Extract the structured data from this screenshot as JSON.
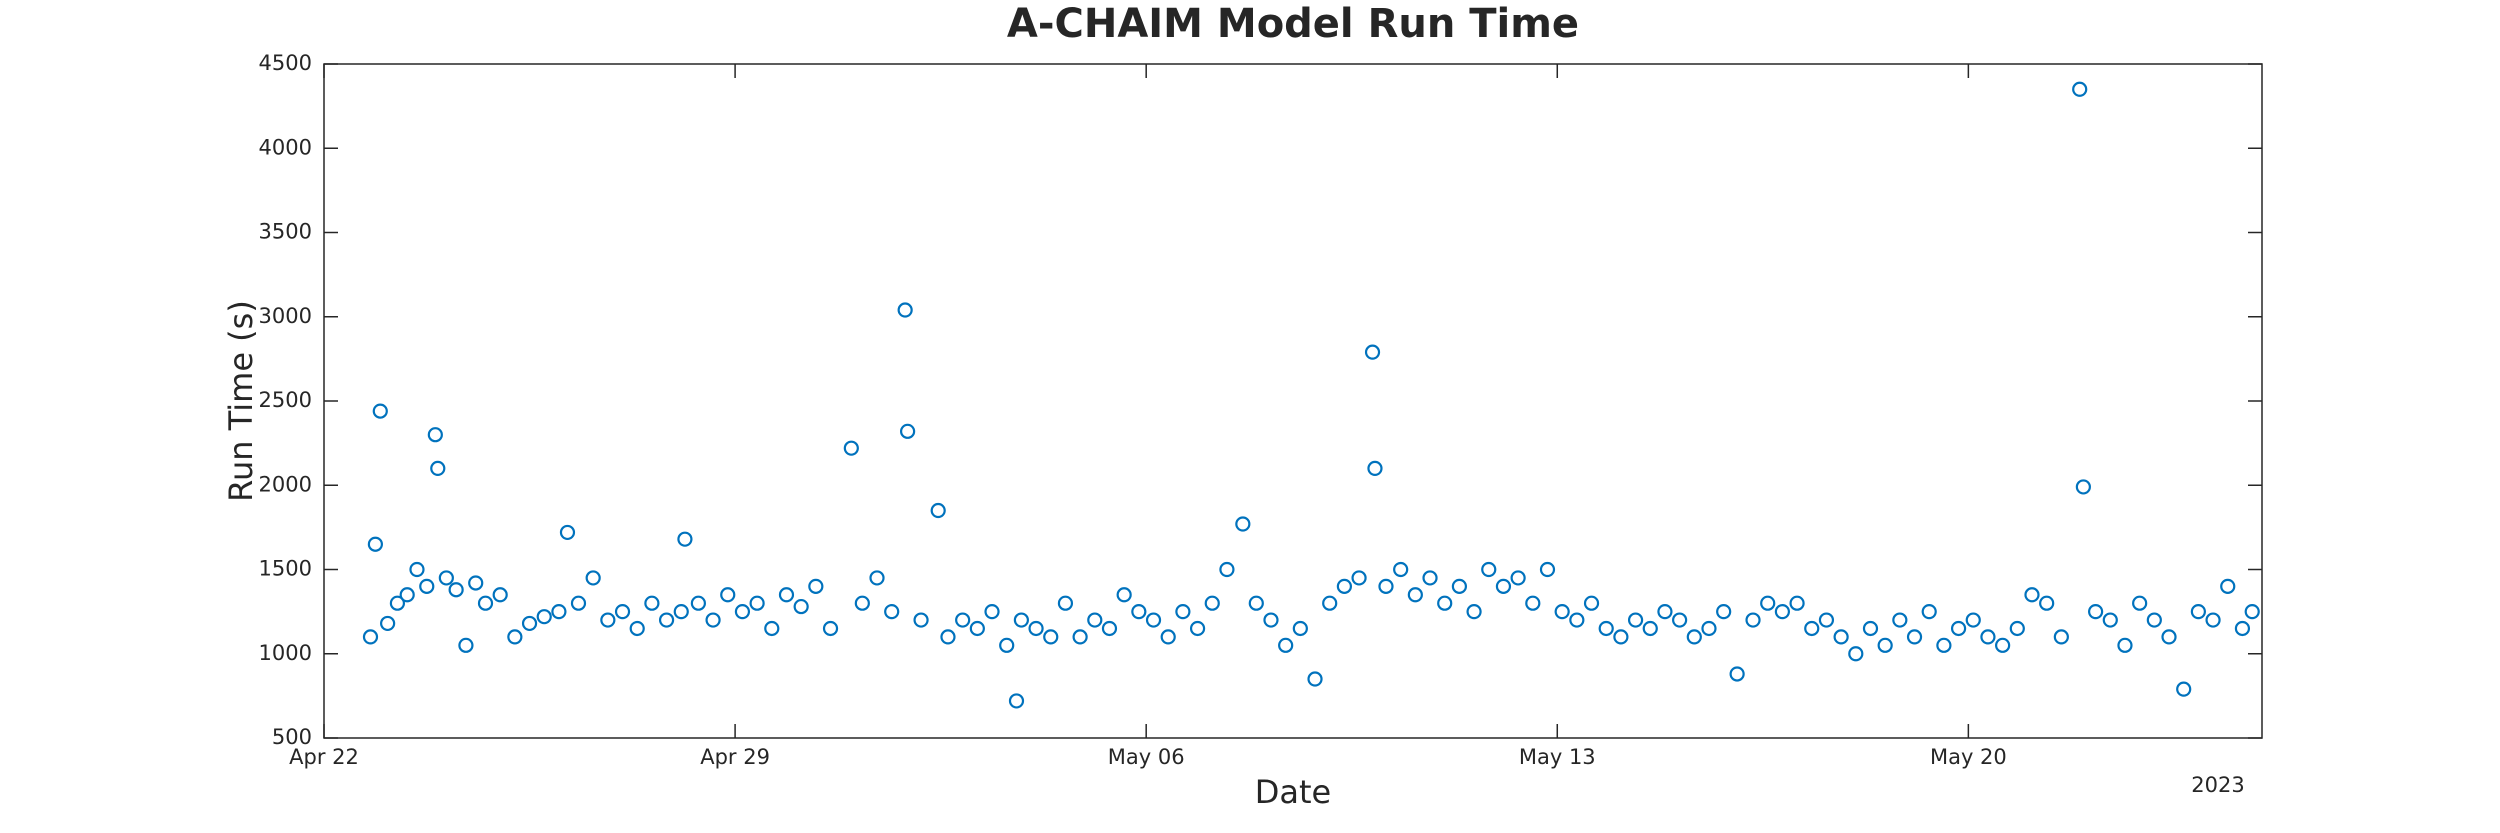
{
  "chart_data": {
    "type": "scatter",
    "title": "A-CHAIM Model Run Time",
    "x_label": "Date",
    "y_label": "Run Time (s)",
    "x_year_label": "2023",
    "grid": false,
    "xlim": [
      "2023-04-22T00:00",
      "2023-05-25T00:00"
    ],
    "xticks": [
      {
        "value": "2023-04-22T00:00",
        "label": "Apr 22"
      },
      {
        "value": "2023-04-29T00:00",
        "label": "Apr 29"
      },
      {
        "value": "2023-05-06T00:00",
        "label": "May 06"
      },
      {
        "value": "2023-05-13T00:00",
        "label": "May 13"
      },
      {
        "value": "2023-05-20T00:00",
        "label": "May 20"
      }
    ],
    "ylim": [
      500,
      4500
    ],
    "yticks": [
      500,
      1000,
      1500,
      2000,
      2500,
      3000,
      3500,
      4000,
      4500
    ],
    "series": [
      {
        "name": "Run Time",
        "color": "#0072bd",
        "x": [
          "2023-04-22T19:00",
          "2023-04-22T21:00",
          "2023-04-22T23:00",
          "2023-04-23T02:00",
          "2023-04-23T06:00",
          "2023-04-23T10:00",
          "2023-04-23T14:00",
          "2023-04-23T18:00",
          "2023-04-23T21:30",
          "2023-04-23T22:30",
          "2023-04-24T02:00",
          "2023-04-24T06:00",
          "2023-04-24T10:00",
          "2023-04-24T14:00",
          "2023-04-24T18:00",
          "2023-04-25T00:00",
          "2023-04-25T06:00",
          "2023-04-25T12:00",
          "2023-04-25T18:00",
          "2023-04-26T00:00",
          "2023-04-26T03:30",
          "2023-04-26T08:00",
          "2023-04-26T14:00",
          "2023-04-26T20:00",
          "2023-04-27T02:00",
          "2023-04-27T08:00",
          "2023-04-27T14:00",
          "2023-04-27T20:00",
          "2023-04-28T02:00",
          "2023-04-28T03:30",
          "2023-04-28T09:00",
          "2023-04-28T15:00",
          "2023-04-28T21:00",
          "2023-04-29T03:00",
          "2023-04-29T09:00",
          "2023-04-29T15:00",
          "2023-04-29T21:00",
          "2023-04-30T03:00",
          "2023-04-30T09:00",
          "2023-04-30T15:00",
          "2023-04-30T23:30",
          "2023-05-01T04:00",
          "2023-05-01T10:00",
          "2023-05-01T16:00",
          "2023-05-01T21:30",
          "2023-05-01T22:30",
          "2023-05-02T04:00",
          "2023-05-02T11:00",
          "2023-05-02T15:00",
          "2023-05-02T21:00",
          "2023-05-03T03:00",
          "2023-05-03T09:00",
          "2023-05-03T15:00",
          "2023-05-03T19:00",
          "2023-05-03T21:00",
          "2023-05-04T03:00",
          "2023-05-04T09:00",
          "2023-05-04T15:00",
          "2023-05-04T21:00",
          "2023-05-05T03:00",
          "2023-05-05T09:00",
          "2023-05-05T15:00",
          "2023-05-05T21:00",
          "2023-05-06T03:00",
          "2023-05-06T09:00",
          "2023-05-06T15:00",
          "2023-05-06T21:00",
          "2023-05-07T03:00",
          "2023-05-07T09:00",
          "2023-05-07T15:30",
          "2023-05-07T21:00",
          "2023-05-08T03:00",
          "2023-05-08T09:00",
          "2023-05-08T15:00",
          "2023-05-08T21:00",
          "2023-05-09T03:00",
          "2023-05-09T09:00",
          "2023-05-09T15:00",
          "2023-05-09T20:30",
          "2023-05-09T21:30",
          "2023-05-10T02:00",
          "2023-05-10T08:00",
          "2023-05-10T14:00",
          "2023-05-10T20:00",
          "2023-05-11T02:00",
          "2023-05-11T08:00",
          "2023-05-11T14:00",
          "2023-05-11T20:00",
          "2023-05-12T02:00",
          "2023-05-12T08:00",
          "2023-05-12T14:00",
          "2023-05-12T20:00",
          "2023-05-13T02:00",
          "2023-05-13T08:00",
          "2023-05-13T14:00",
          "2023-05-13T20:00",
          "2023-05-14T02:00",
          "2023-05-14T08:00",
          "2023-05-14T14:00",
          "2023-05-14T20:00",
          "2023-05-15T02:00",
          "2023-05-15T08:00",
          "2023-05-15T14:00",
          "2023-05-15T20:00",
          "2023-05-16T01:30",
          "2023-05-16T08:00",
          "2023-05-16T14:00",
          "2023-05-16T20:00",
          "2023-05-17T02:00",
          "2023-05-17T08:00",
          "2023-05-17T14:00",
          "2023-05-17T20:00",
          "2023-05-18T02:00",
          "2023-05-18T08:00",
          "2023-05-18T14:00",
          "2023-05-18T20:00",
          "2023-05-19T02:00",
          "2023-05-19T08:00",
          "2023-05-19T14:00",
          "2023-05-19T20:00",
          "2023-05-20T02:00",
          "2023-05-20T08:00",
          "2023-05-20T14:00",
          "2023-05-20T20:00",
          "2023-05-21T02:00",
          "2023-05-21T08:00",
          "2023-05-21T14:00",
          "2023-05-21T21:30",
          "2023-05-21T23:00",
          "2023-05-22T04:00",
          "2023-05-22T10:00",
          "2023-05-22T16:00",
          "2023-05-22T22:00",
          "2023-05-23T04:00",
          "2023-05-23T10:00",
          "2023-05-23T16:00",
          "2023-05-23T22:00",
          "2023-05-24T04:00",
          "2023-05-24T10:00",
          "2023-05-24T16:00",
          "2023-05-24T20:00"
        ],
        "values": [
          1100,
          1650,
          2440,
          1180,
          1300,
          1350,
          1500,
          1400,
          2300,
          2100,
          1450,
          1380,
          1050,
          1420,
          1300,
          1350,
          1100,
          1180,
          1220,
          1250,
          1720,
          1300,
          1450,
          1200,
          1250,
          1150,
          1300,
          1200,
          1250,
          1680,
          1300,
          1200,
          1350,
          1250,
          1300,
          1150,
          1350,
          1280,
          1400,
          1150,
          2220,
          1300,
          1450,
          1250,
          3040,
          2320,
          1200,
          1850,
          1100,
          1200,
          1150,
          1250,
          1050,
          720,
          1200,
          1150,
          1100,
          1300,
          1100,
          1200,
          1150,
          1350,
          1250,
          1200,
          1100,
          1250,
          1150,
          1300,
          1500,
          1770,
          1300,
          1200,
          1050,
          1150,
          850,
          1300,
          1400,
          1450,
          2790,
          2100,
          1400,
          1500,
          1350,
          1450,
          1300,
          1400,
          1250,
          1500,
          1400,
          1450,
          1300,
          1500,
          1250,
          1200,
          1300,
          1150,
          1100,
          1200,
          1150,
          1250,
          1200,
          1100,
          1150,
          1250,
          880,
          1200,
          1300,
          1250,
          1300,
          1150,
          1200,
          1100,
          1000,
          1150,
          1050,
          1200,
          1100,
          1250,
          1050,
          1150,
          1200,
          1100,
          1050,
          1150,
          1350,
          1300,
          1100,
          4350,
          1990,
          1250,
          1200,
          1050,
          1300,
          1200,
          1100,
          790,
          1250,
          1200,
          1400,
          1150,
          1250
        ]
      }
    ]
  }
}
